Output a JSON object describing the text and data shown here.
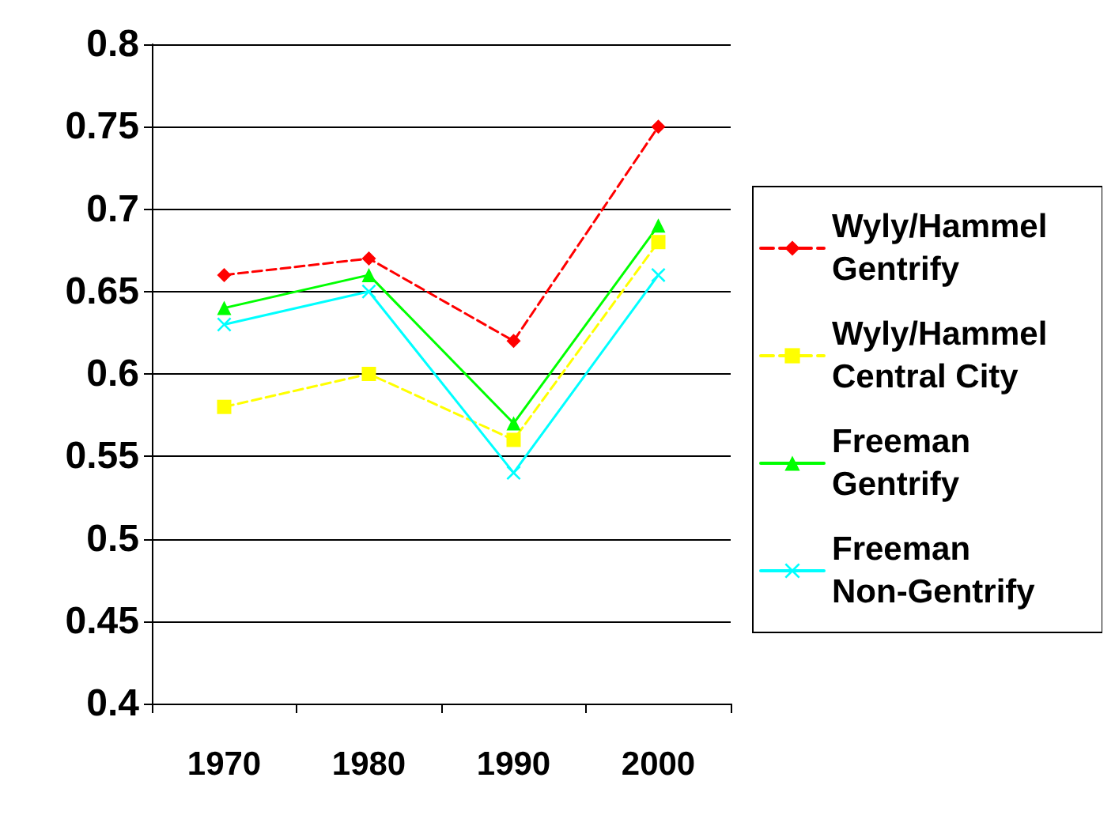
{
  "chart_data": {
    "type": "line",
    "categories": [
      "1970",
      "1980",
      "1990",
      "2000"
    ],
    "series": [
      {
        "name": "Wyly/Hammel Gentrify",
        "color": "#ff0000",
        "values": [
          0.66,
          0.67,
          0.62,
          0.75
        ],
        "marker": "diamond",
        "line_style": "dashed"
      },
      {
        "name": "Wyly/Hammel Central City",
        "color": "#ffff00",
        "values": [
          0.58,
          0.6,
          0.56,
          0.68
        ],
        "marker": "square",
        "line_style": "dashed"
      },
      {
        "name": "Freeman Gentrify",
        "color": "#00ff00",
        "values": [
          0.64,
          0.66,
          0.57,
          0.69
        ],
        "marker": "triangle",
        "line_style": "solid"
      },
      {
        "name": "Freeman Non-Gentrify",
        "color": "#00ffff",
        "values": [
          0.63,
          0.65,
          0.54,
          0.66
        ],
        "marker": "cross",
        "line_style": "solid"
      }
    ],
    "ylim": [
      0.4,
      0.8
    ],
    "yticks": [
      0.4,
      0.45,
      0.5,
      0.55,
      0.6,
      0.65,
      0.7,
      0.75,
      0.8
    ],
    "grid": "y",
    "legend": "right"
  }
}
